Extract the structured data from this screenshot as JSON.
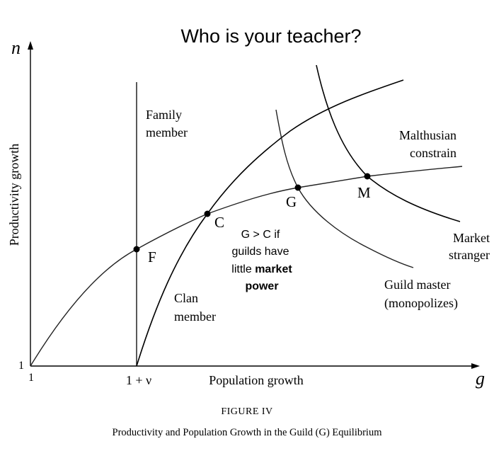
{
  "slide_title": "Who is your teacher?",
  "axes": {
    "y_symbol": "n",
    "y_label": "Productivity growth",
    "y_origin": "1",
    "x_symbol": "g",
    "x_label": "Population growth",
    "x_origin": "1",
    "x_tick_nu": "1 + ν"
  },
  "curves": {
    "family_member": "Family\nmember",
    "clan_member": "Clan\nmember",
    "malthusian": "Malthusian\nconstrain",
    "market_stranger": "Market\nstranger",
    "guild_master": "Guild master\n(monopolizes)"
  },
  "points": {
    "F": "F",
    "C": "C",
    "G": "G",
    "M": "M"
  },
  "annotation": {
    "line1": "G > C if",
    "line2": "guilds have",
    "line3_plain": "little ",
    "line3_bold": "market",
    "line4_bold": "power"
  },
  "caption": {
    "figure_label": "FIGURE IV",
    "figure_title": "Productivity and Population Growth in the Guild (G) Equilibrium"
  }
}
